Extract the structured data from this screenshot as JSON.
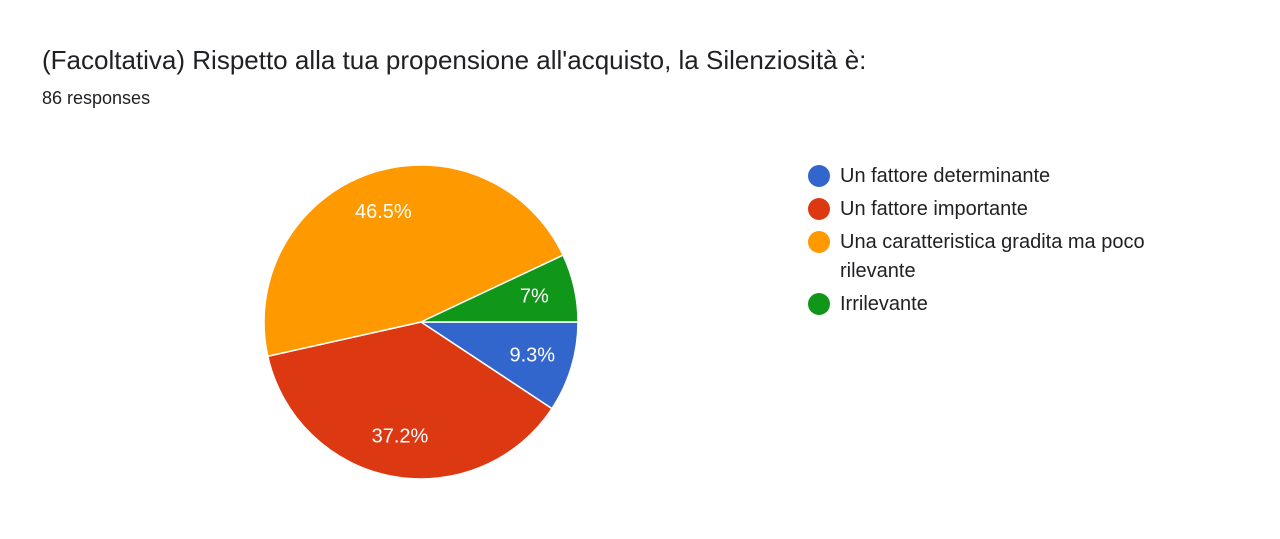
{
  "header": {
    "title": "(Facoltativa) Rispetto alla tua propensione all'acquisto, la Silenziosità è:",
    "responses": "86 responses"
  },
  "chart_data": {
    "type": "pie",
    "categories": [
      "Un fattore determinante",
      "Un fattore importante",
      "Una caratteristica gradita ma poco rilevante",
      "Irrilevante"
    ],
    "values": [
      9.3,
      37.2,
      46.5,
      7.0
    ],
    "labels": [
      "9.3%",
      "37.2%",
      "46.5%",
      "7%"
    ],
    "colors": [
      "#3366cc",
      "#dc3912",
      "#ff9900",
      "#109618"
    ],
    "legend_position": "right"
  }
}
